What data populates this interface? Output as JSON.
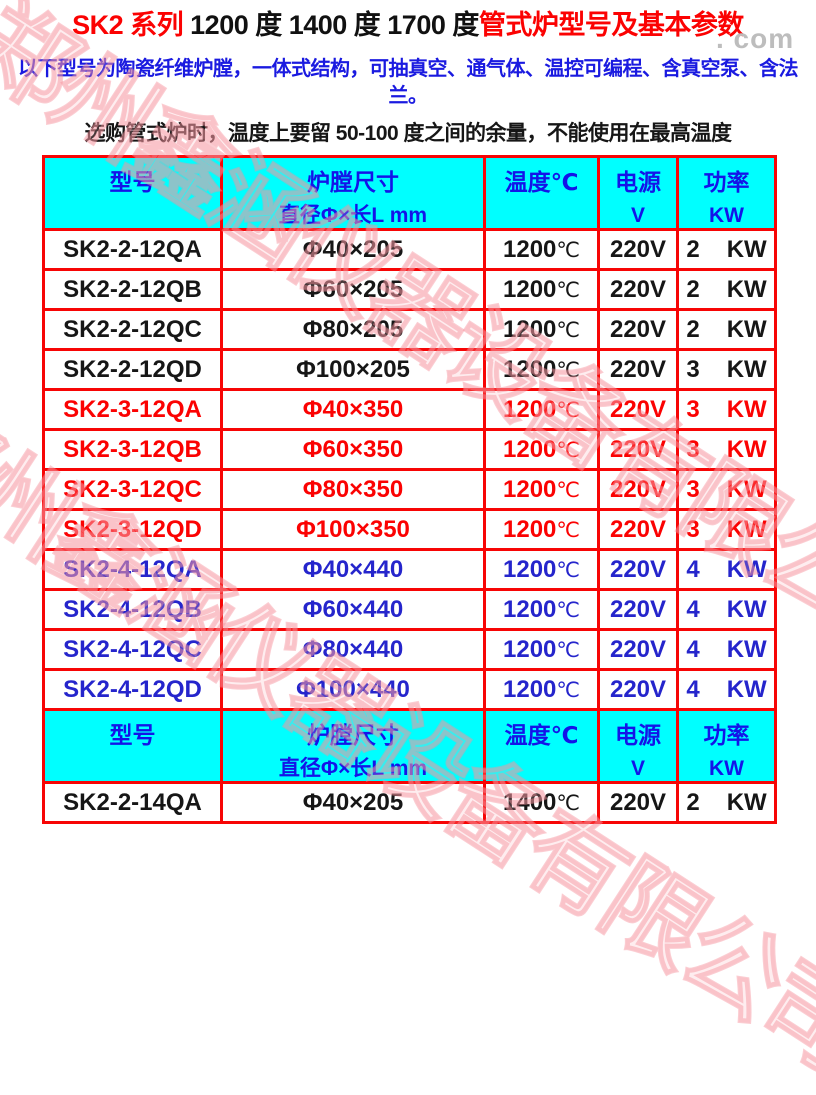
{
  "title": {
    "part1": "SK2 系列 ",
    "part2": "1200 度 1400 度 1700 度",
    "part3": "管式炉型号及基本参数"
  },
  "subtitle": "以下型号为陶瓷纤维炉膛，一体式结构，可抽真空、通气体、温控可编程、含真空泵、含法兰。",
  "note": "选购管式炉时，温度上要留 50-100 度之间的余量，不能使用在最高温度",
  "watermark": {
    "diagonal_text": "郑州鑫涵仪器设备有限公司",
    "domain_text": ". com"
  },
  "colors": {
    "border_red": "#f70505",
    "header_bg_cyan": "#00ffff",
    "header_text_blue": "#1414e8",
    "row_text_black": "#161616",
    "row_text_red": "#fb0202",
    "row_text_blue": "#2525cc",
    "watermark_pink": "#f8a8af",
    "watermark_gray": "#bdbdbd"
  },
  "table": {
    "header": {
      "model_l1": "型号",
      "model_l2": "",
      "size_l1": "炉膛尺寸",
      "size_l2": "直径Φ×长L mm",
      "temp_l1": "温度℃",
      "temp_l2": "",
      "volt_l1": "电源",
      "volt_l2": "V",
      "watt_l1": "功率",
      "watt_l2": "KW"
    },
    "section1_rows": [
      {
        "model": "SK2-2-12QA",
        "size": "Φ40×205",
        "temp": "1200",
        "temp_unit": "℃",
        "volt": "220V",
        "watt": "2",
        "watt_unit": "KW",
        "color": "black"
      },
      {
        "model": "SK2-2-12QB",
        "size": "Φ60×205",
        "temp": "1200",
        "temp_unit": "℃",
        "volt": "220V",
        "watt": "2",
        "watt_unit": "KW",
        "color": "black"
      },
      {
        "model": "SK2-2-12QC",
        "size": "Φ80×205",
        "temp": "1200",
        "temp_unit": "℃",
        "volt": "220V",
        "watt": "2",
        "watt_unit": "KW",
        "color": "black"
      },
      {
        "model": "SK2-2-12QD",
        "size": "Φ100×205",
        "temp": "1200",
        "temp_unit": "℃",
        "volt": "220V",
        "watt": "3",
        "watt_unit": "KW",
        "color": "black"
      },
      {
        "model": "SK2-3-12QA",
        "size": "Φ40×350",
        "temp": "1200",
        "temp_unit": "℃",
        "volt": "220V",
        "watt": "3",
        "watt_unit": "KW",
        "color": "red"
      },
      {
        "model": "SK2-3-12QB",
        "size": "Φ60×350",
        "temp": "1200",
        "temp_unit": "℃",
        "volt": "220V",
        "watt": "3",
        "watt_unit": "KW",
        "color": "red"
      },
      {
        "model": "SK2-3-12QC",
        "size": "Φ80×350",
        "temp": "1200",
        "temp_unit": "℃",
        "volt": "220V",
        "watt": "3",
        "watt_unit": "KW",
        "color": "red"
      },
      {
        "model": "SK2-3-12QD",
        "size": "Φ100×350",
        "temp": "1200",
        "temp_unit": "℃",
        "volt": "220V",
        "watt": "3",
        "watt_unit": "KW",
        "color": "red"
      },
      {
        "model": "SK2-4-12QA",
        "size": "Φ40×440",
        "temp": "1200",
        "temp_unit": "℃",
        "volt": "220V",
        "watt": "4",
        "watt_unit": "KW",
        "color": "blue"
      },
      {
        "model": "SK2-4-12QB",
        "size": "Φ60×440",
        "temp": "1200",
        "temp_unit": "℃",
        "volt": "220V",
        "watt": "4",
        "watt_unit": "KW",
        "color": "blue"
      },
      {
        "model": "SK2-4-12QC",
        "size": "Φ80×440",
        "temp": "1200",
        "temp_unit": "℃",
        "volt": "220V",
        "watt": "4",
        "watt_unit": "KW",
        "color": "blue"
      },
      {
        "model": "SK2-4-12QD",
        "size": "Φ100×440",
        "temp": "1200",
        "temp_unit": "℃",
        "volt": "220V",
        "watt": "4",
        "watt_unit": "KW",
        "color": "blue"
      }
    ],
    "section2_rows": [
      {
        "model": "SK2-2-14QA",
        "size": "Φ40×205",
        "temp": "1400",
        "temp_unit": "℃",
        "volt": "220V",
        "watt": "2",
        "watt_unit": "KW",
        "color": "black"
      }
    ]
  }
}
